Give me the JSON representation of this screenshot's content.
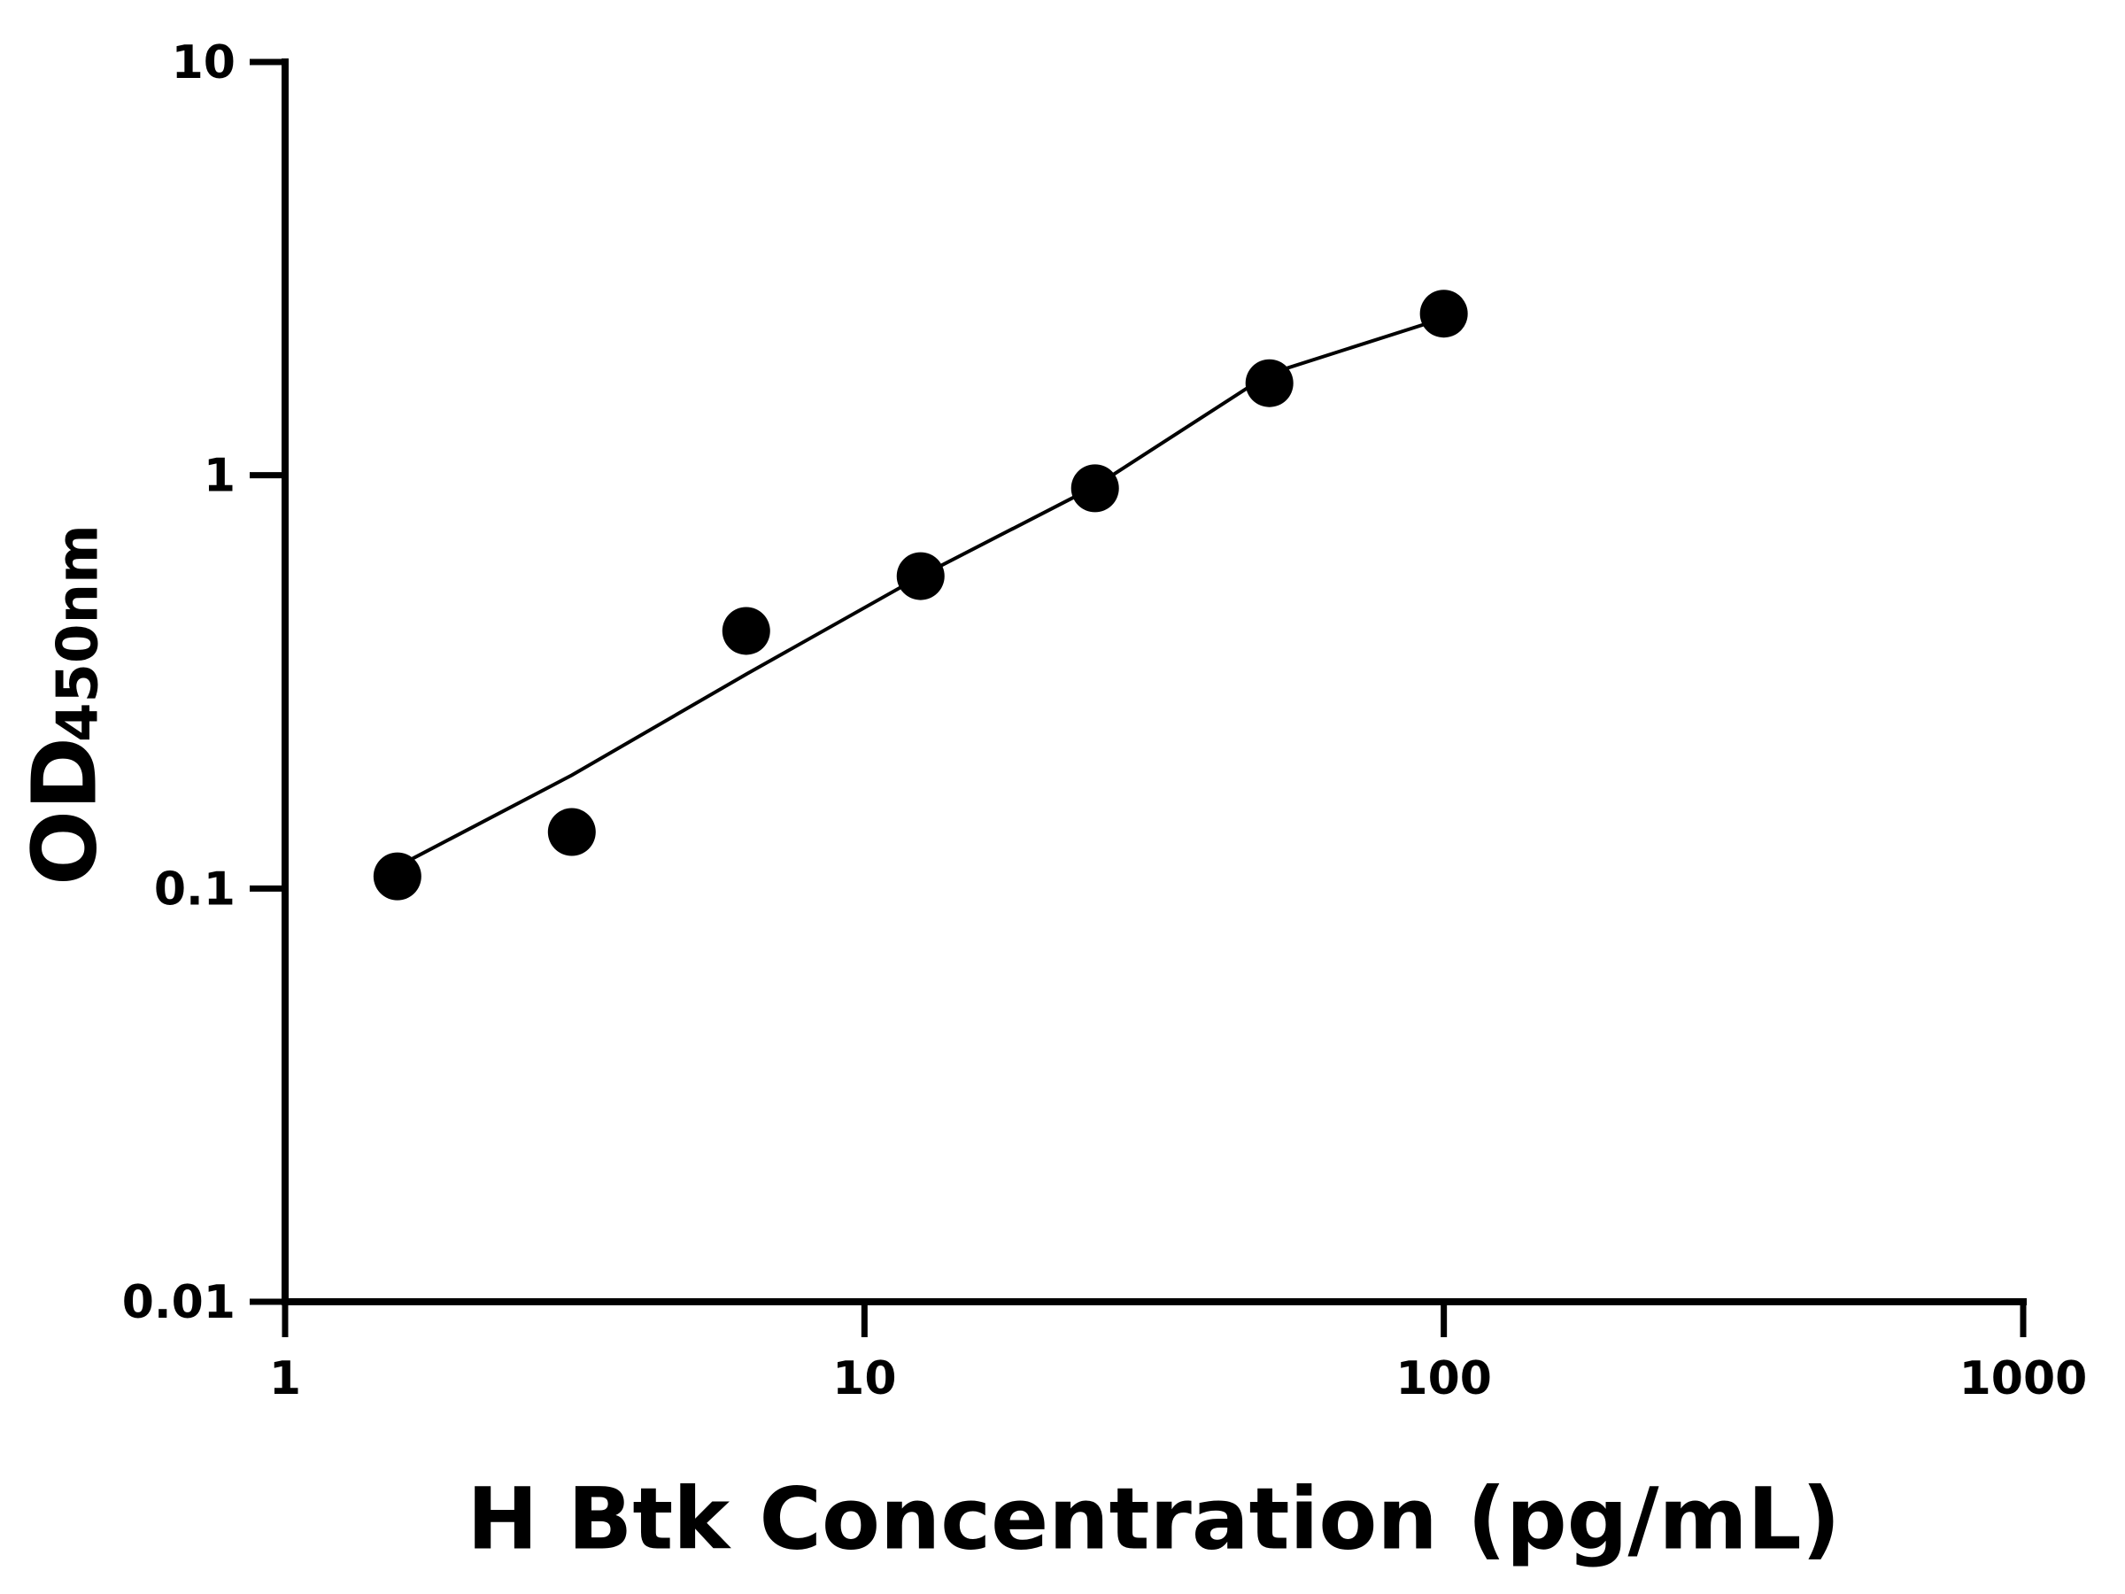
{
  "chart_data": {
    "type": "scatter",
    "x_label": "H Btk Concentration (pg/mL)",
    "y_label": "OD",
    "y_label_subscript": "450nm",
    "x": [
      1.5625,
      3.125,
      6.25,
      12.5,
      25,
      50,
      100
    ],
    "series": [
      {
        "type": "scatter",
        "color": "#000000",
        "values": [
          0.107,
          0.137,
          0.42,
          0.57,
          0.93,
          1.67,
          2.46
        ]
      },
      {
        "type": "line",
        "color": "#000000",
        "values": [
          0.113,
          0.188,
          0.33,
          0.57,
          0.94,
          1.76,
          2.4
        ]
      }
    ],
    "xlim": [
      1,
      1000
    ],
    "xticks": [
      1,
      10,
      100,
      1000
    ],
    "ylim": [
      0.01,
      10
    ],
    "yticks": [
      0.01,
      0.1,
      1,
      10
    ],
    "log_x": true,
    "log_y": true
  }
}
